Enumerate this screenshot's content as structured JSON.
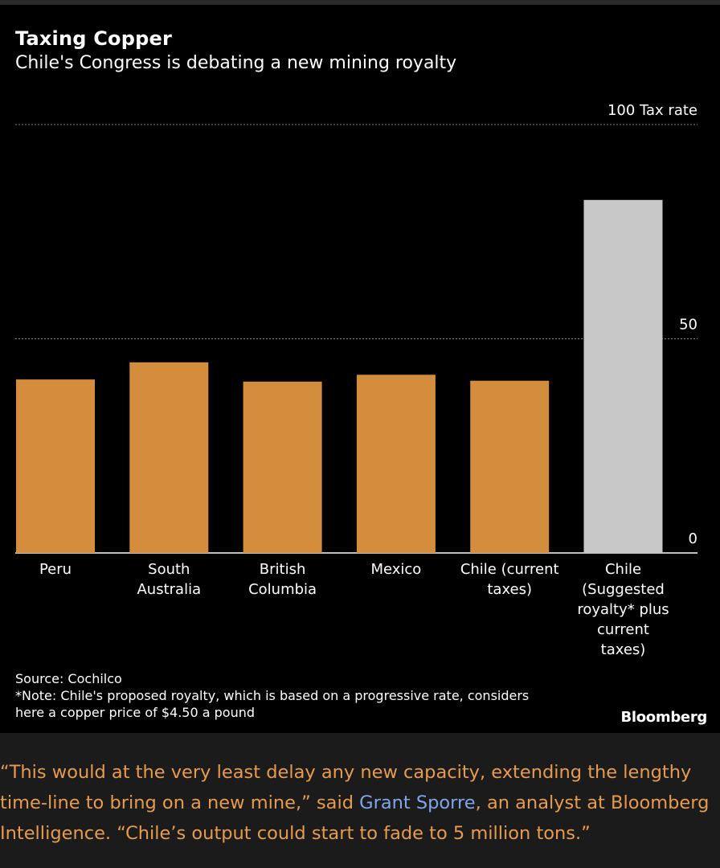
{
  "chart": {
    "title": "Taxing Copper",
    "subtitle": "Chile's Congress is debating a new mining royalty",
    "source": "Source: Cochilco",
    "note_lines": [
      "*Note: Chile's proposed royalty, which is based on a progressive rate, considers",
      "here a copper price of $4.50 a pound"
    ],
    "brand": "Bloomberg"
  },
  "chart_data": {
    "type": "bar",
    "title": "Taxing Copper",
    "subtitle": "Chile's Congress is debating a new mining royalty",
    "ylabel": "Tax rate",
    "ylim": [
      0,
      100
    ],
    "yticks": [
      {
        "value": 0,
        "label": "0"
      },
      {
        "value": 50,
        "label": "50"
      },
      {
        "value": 100,
        "label": "100 Tax rate"
      }
    ],
    "grid": true,
    "categories": [
      {
        "label_lines": [
          "Peru"
        ],
        "value": 40.5,
        "color": "#d38d3c"
      },
      {
        "label_lines": [
          "South",
          "Australia"
        ],
        "value": 44.5,
        "color": "#d38d3c"
      },
      {
        "label_lines": [
          "British",
          "Columbia"
        ],
        "value": 40,
        "color": "#d38d3c"
      },
      {
        "label_lines": [
          "Mexico"
        ],
        "value": 41.6,
        "color": "#d38d3c"
      },
      {
        "label_lines": [
          "Chile (current",
          "taxes)"
        ],
        "value": 40.2,
        "color": "#d38d3c"
      },
      {
        "label_lines": [
          "Chile",
          "(Suggested",
          "royalty* plus",
          "current",
          "taxes)"
        ],
        "value": 82.4,
        "color": "#c8c8c8"
      }
    ]
  },
  "article": {
    "before_link": "“This would at the very least delay any new capacity, extending the lengthy time-line to bring on a new mine,” said ",
    "link": "Grant Sporre",
    "after_link": ", an analyst at Bloomberg Intelligence. “Chile’s output could start to fade to 5 million tons.”"
  },
  "colors": {
    "background": "#000000",
    "bar_orange": "#d38d3c",
    "bar_gray": "#c8c8c8",
    "article_text": "#e69c4c",
    "article_link": "#7fa7e8"
  }
}
